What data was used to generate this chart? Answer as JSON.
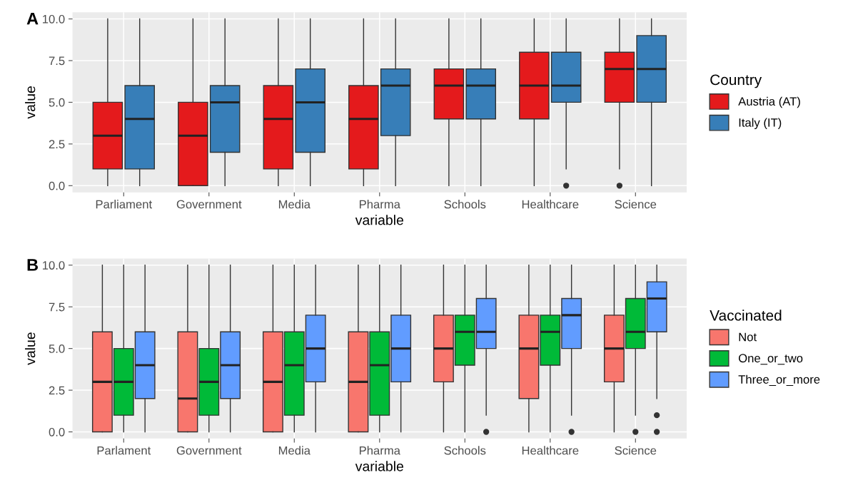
{
  "chart_data": [
    {
      "type": "box",
      "title": "A",
      "xlabel": "variable",
      "ylabel": "value",
      "legend_title": "Country",
      "legend": "right",
      "grid": true,
      "categories": [
        "Parliament",
        "Government",
        "Media",
        "Pharma",
        "Schools",
        "Healthcare",
        "Science"
      ],
      "ylim": [
        -0.4,
        10.4
      ],
      "yticks": [
        {
          "value": 0,
          "label": "0.0"
        },
        {
          "value": 2.5,
          "label": "2.5"
        },
        {
          "value": 5,
          "label": "5.0"
        },
        {
          "value": 7.5,
          "label": "7.5"
        },
        {
          "value": 10,
          "label": "10.0"
        }
      ],
      "series": [
        {
          "name": "Austria (AT)",
          "color": "#e41a1c",
          "boxes": [
            {
              "low": 0,
              "q1": 1,
              "median": 3,
              "q3": 5,
              "high": 10
            },
            {
              "low": 0,
              "q1": 0,
              "median": 3,
              "q3": 5,
              "high": 10
            },
            {
              "low": 0,
              "q1": 1,
              "median": 4,
              "q3": 6,
              "high": 10
            },
            {
              "low": 0,
              "q1": 1,
              "median": 4,
              "q3": 6,
              "high": 10
            },
            {
              "low": 0,
              "q1": 4,
              "median": 6,
              "q3": 7,
              "high": 10
            },
            {
              "low": 0,
              "q1": 4,
              "median": 6,
              "q3": 8,
              "high": 10
            },
            {
              "low": 1,
              "q1": 5,
              "median": 7,
              "q3": 8,
              "high": 10,
              "outliers": [
                0
              ]
            }
          ]
        },
        {
          "name": "Italy (IT)",
          "color": "#377eb8",
          "boxes": [
            {
              "low": 0,
              "q1": 1,
              "median": 4,
              "q3": 6,
              "high": 10
            },
            {
              "low": 0,
              "q1": 2,
              "median": 5,
              "q3": 6,
              "high": 10
            },
            {
              "low": 0,
              "q1": 2,
              "median": 5,
              "q3": 7,
              "high": 10
            },
            {
              "low": 0,
              "q1": 3,
              "median": 6,
              "q3": 7,
              "high": 10
            },
            {
              "low": 0,
              "q1": 4,
              "median": 6,
              "q3": 7,
              "high": 10
            },
            {
              "low": 1,
              "q1": 5,
              "median": 6,
              "q3": 8,
              "high": 10,
              "outliers": [
                0
              ]
            },
            {
              "low": 0,
              "q1": 5,
              "median": 7,
              "q3": 9,
              "high": 10
            }
          ]
        }
      ]
    },
    {
      "type": "box",
      "title": "B",
      "xlabel": "variable",
      "ylabel": "value",
      "legend_title": "Vaccinated",
      "legend": "right",
      "grid": true,
      "categories": [
        "Parlament",
        "Government",
        "Media",
        "Pharma",
        "Schools",
        "Healthcare",
        "Science"
      ],
      "ylim": [
        -0.4,
        10.4
      ],
      "yticks": [
        {
          "value": 0,
          "label": "0.0"
        },
        {
          "value": 2.5,
          "label": "2.5"
        },
        {
          "value": 5,
          "label": "5.0"
        },
        {
          "value": 7.5,
          "label": "7.5"
        },
        {
          "value": 10,
          "label": "10.0"
        }
      ],
      "series": [
        {
          "name": "Not",
          "color": "#f8766d",
          "boxes": [
            {
              "low": 0,
              "q1": 0,
              "median": 3,
              "q3": 6,
              "high": 10
            },
            {
              "low": 0,
              "q1": 0,
              "median": 2,
              "q3": 6,
              "high": 10
            },
            {
              "low": 0,
              "q1": 0,
              "median": 3,
              "q3": 6,
              "high": 10
            },
            {
              "low": 0,
              "q1": 0,
              "median": 3,
              "q3": 6,
              "high": 10
            },
            {
              "low": 0,
              "q1": 3,
              "median": 5,
              "q3": 7,
              "high": 10
            },
            {
              "low": 0,
              "q1": 2,
              "median": 5,
              "q3": 7,
              "high": 10
            },
            {
              "low": 0,
              "q1": 3,
              "median": 5,
              "q3": 7,
              "high": 10
            }
          ]
        },
        {
          "name": "One_or_two",
          "color": "#00ba38",
          "boxes": [
            {
              "low": 0,
              "q1": 1,
              "median": 3,
              "q3": 5,
              "high": 10
            },
            {
              "low": 0,
              "q1": 1,
              "median": 3,
              "q3": 5,
              "high": 10
            },
            {
              "low": 0,
              "q1": 1,
              "median": 4,
              "q3": 6,
              "high": 10
            },
            {
              "low": 0,
              "q1": 1,
              "median": 4,
              "q3": 6,
              "high": 10
            },
            {
              "low": 0,
              "q1": 4,
              "median": 6,
              "q3": 7,
              "high": 10
            },
            {
              "low": 0,
              "q1": 4,
              "median": 6,
              "q3": 7,
              "high": 10
            },
            {
              "low": 1,
              "q1": 5,
              "median": 6,
              "q3": 8,
              "high": 10,
              "outliers": [
                0
              ]
            }
          ]
        },
        {
          "name": "Three_or_more",
          "color": "#619cff",
          "boxes": [
            {
              "low": 0,
              "q1": 2,
              "median": 4,
              "q3": 6,
              "high": 10
            },
            {
              "low": 0,
              "q1": 2,
              "median": 4,
              "q3": 6,
              "high": 10
            },
            {
              "low": 0,
              "q1": 3,
              "median": 5,
              "q3": 7,
              "high": 10
            },
            {
              "low": 0,
              "q1": 3,
              "median": 5,
              "q3": 7,
              "high": 10
            },
            {
              "low": 1,
              "q1": 5,
              "median": 6,
              "q3": 8,
              "high": 10,
              "outliers": [
                0
              ]
            },
            {
              "low": 1,
              "q1": 5,
              "median": 7,
              "q3": 8,
              "high": 10,
              "outliers": [
                0
              ]
            },
            {
              "low": 2,
              "q1": 6,
              "median": 8,
              "q3": 9,
              "high": 10,
              "outliers": [
                0,
                1
              ]
            }
          ]
        }
      ]
    }
  ]
}
